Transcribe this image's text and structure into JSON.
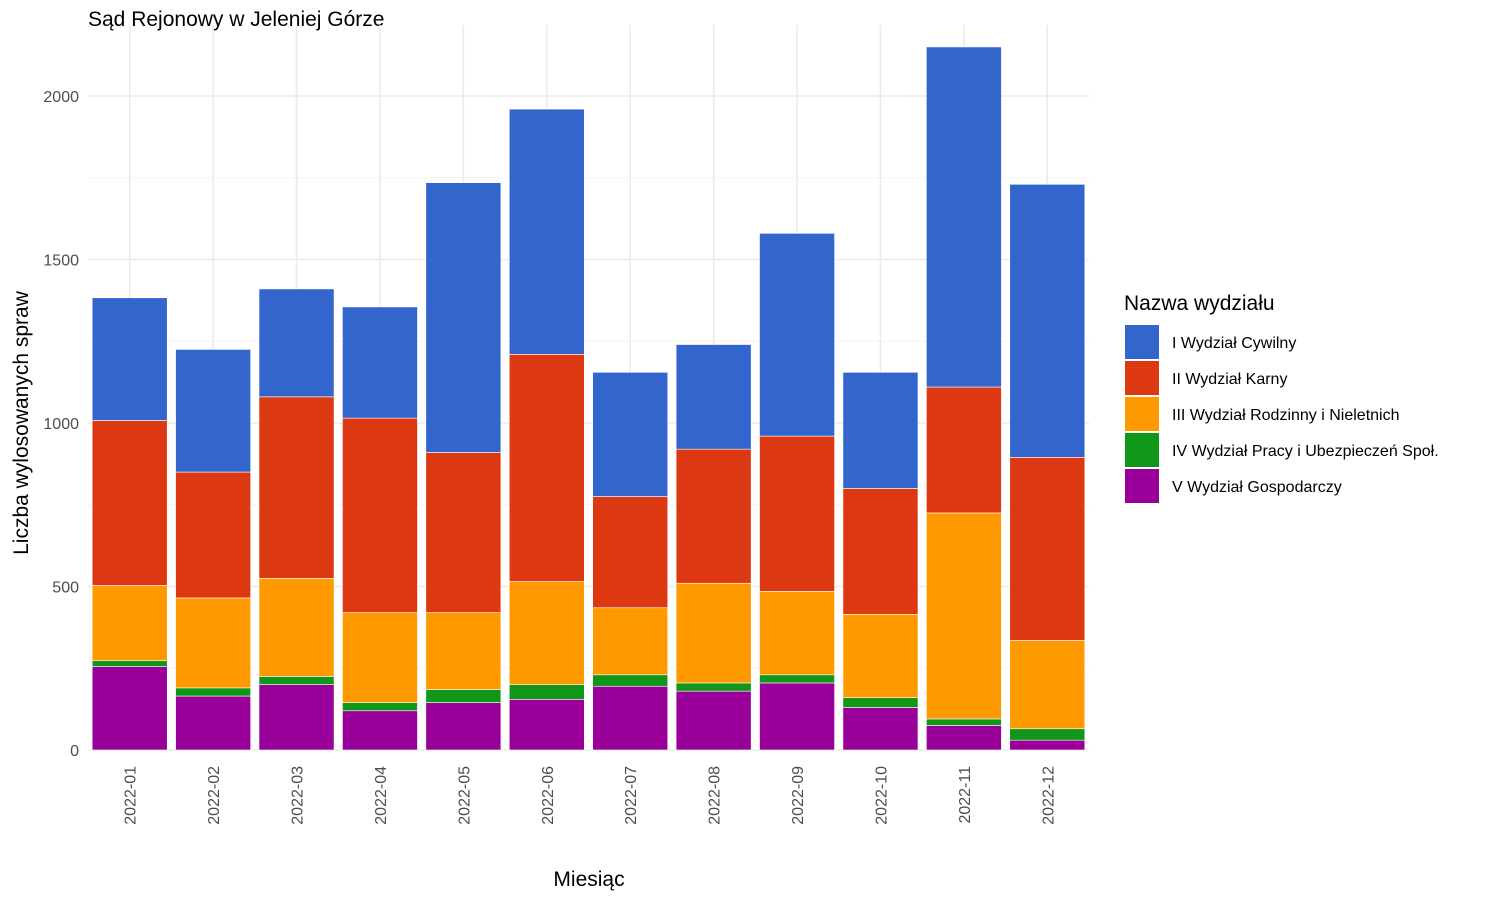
{
  "chart_data": {
    "type": "bar",
    "stacked": true,
    "title": "Sąd Rejonowy w Jeleniej Górze",
    "xlabel": "Miesiąc",
    "ylabel": "Liczba wylosowanych spraw",
    "ylim": [
      0,
      2150
    ],
    "y_ticks": [
      0,
      500,
      1000,
      1500,
      2000
    ],
    "grid": true,
    "legend_position": "right",
    "legend_title": "Nazwa wydziału",
    "categories": [
      "2022-01",
      "2022-02",
      "2022-03",
      "2022-04",
      "2022-05",
      "2022-06",
      "2022-07",
      "2022-08",
      "2022-09",
      "2022-10",
      "2022-11",
      "2022-12"
    ],
    "series": [
      {
        "name": "V Wydział Gospodarczy",
        "color": "#990099",
        "values": [
          255,
          165,
          200,
          120,
          145,
          155,
          195,
          180,
          205,
          130,
          75,
          30
        ]
      },
      {
        "name": "IV Wydział Pracy i Ubezpieczeń Społ.",
        "color": "#109618",
        "values": [
          18,
          25,
          25,
          25,
          40,
          45,
          35,
          25,
          25,
          30,
          20,
          35
        ]
      },
      {
        "name": "III Wydział Rodzinny i Nieletnich",
        "color": "#FF9900",
        "values": [
          230,
          275,
          300,
          275,
          235,
          315,
          205,
          305,
          255,
          255,
          630,
          270
        ]
      },
      {
        "name": "II Wydział Karny",
        "color": "#DC3912",
        "values": [
          505,
          385,
          555,
          595,
          490,
          695,
          340,
          410,
          475,
          385,
          385,
          560
        ]
      },
      {
        "name": "I Wydział Cywilny",
        "color": "#3366CC",
        "values": [
          375,
          375,
          330,
          340,
          825,
          750,
          380,
          320,
          620,
          355,
          1040,
          835
        ]
      }
    ],
    "legend_order": [
      "I Wydział Cywilny",
      "II Wydział Karny",
      "III Wydział Rodzinny i Nieletnich",
      "IV Wydział Pracy i Ubezpieczeń Społ.",
      "V Wydział Gospodarczy"
    ]
  }
}
